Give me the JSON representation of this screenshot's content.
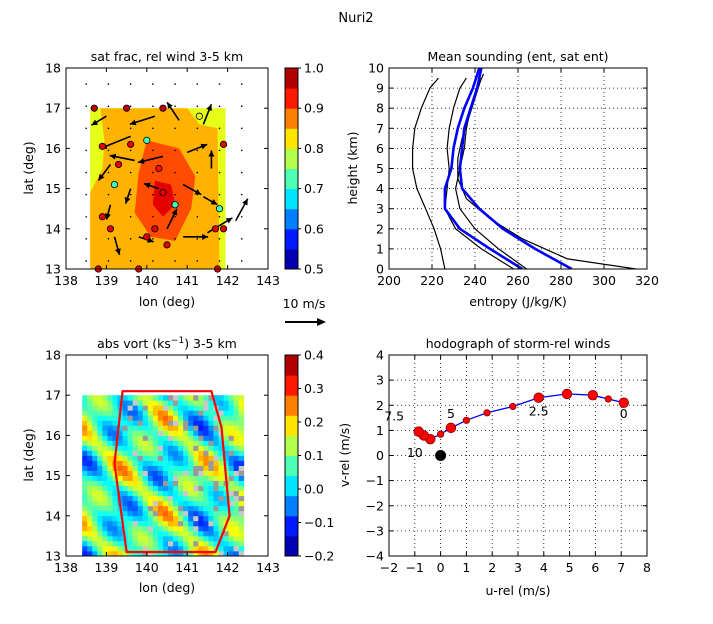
{
  "figure": {
    "title": "Nuri2"
  },
  "colormap_jet": [
    "#00007f",
    "#0000ff",
    "#007fff",
    "#00ffff",
    "#7fff7f",
    "#ffff00",
    "#ff7f00",
    "#ff0000",
    "#7f0000"
  ],
  "chart_data": [
    {
      "id": "sat-frac",
      "type": "heatmap",
      "title": "sat frac, rel wind 3-5 km",
      "xlabel": "lon (deg)",
      "ylabel": "lat (deg)",
      "xlim": [
        138,
        143
      ],
      "ylim": [
        13,
        18
      ],
      "xticks": [
        "138",
        "139",
        "140",
        "141",
        "142",
        "143"
      ],
      "yticks": [
        "13",
        "14",
        "15",
        "16",
        "17",
        "18"
      ],
      "colorbar": {
        "min": 0.5,
        "max": 1.0,
        "ticks": [
          "0.5",
          "0.6",
          "0.7",
          "0.8",
          "0.9",
          "1.0"
        ]
      },
      "wind_scale_label": "10 m/s",
      "field_levels": [
        {
          "level": 0.8,
          "polygon": [
            [
              138.6,
              17.0
            ],
            [
              141.95,
              17.0
            ],
            [
              141.95,
              13.0
            ],
            [
              138.6,
              13.0
            ]
          ]
        },
        {
          "level": 0.85,
          "polygon": [
            [
              138.85,
              17.0
            ],
            [
              141.0,
              17.0
            ],
            [
              141.3,
              16.6
            ],
            [
              141.75,
              16.5
            ],
            [
              141.8,
              13.0
            ],
            [
              138.6,
              13.0
            ],
            [
              138.6,
              14.9
            ],
            [
              138.9,
              15.5
            ],
            [
              138.95,
              16.2
            ]
          ]
        },
        {
          "level": 0.9,
          "polygon": [
            [
              140.0,
              16.2
            ],
            [
              140.8,
              16.0
            ],
            [
              141.2,
              15.3
            ],
            [
              141.1,
              14.5
            ],
            [
              140.7,
              13.7
            ],
            [
              140.1,
              13.8
            ],
            [
              139.7,
              14.4
            ],
            [
              139.8,
              15.4
            ]
          ]
        },
        {
          "level": 0.95,
          "polygon": [
            [
              140.2,
              15.2
            ],
            [
              140.6,
              15.1
            ],
            [
              140.7,
              14.6
            ],
            [
              140.4,
              14.3
            ],
            [
              140.15,
              14.6
            ]
          ]
        }
      ],
      "stations": [
        {
          "lon": 138.7,
          "lat": 17.0,
          "v": 0.97
        },
        {
          "lon": 139.5,
          "lat": 17.0,
          "v": 0.97
        },
        {
          "lon": 140.4,
          "lat": 17.0,
          "v": 0.97
        },
        {
          "lon": 138.9,
          "lat": 16.05,
          "v": 0.95
        },
        {
          "lon": 139.3,
          "lat": 15.6,
          "v": 0.95
        },
        {
          "lon": 139.6,
          "lat": 16.1,
          "v": 0.95
        },
        {
          "lon": 140.3,
          "lat": 15.5,
          "v": 0.93
        },
        {
          "lon": 140.0,
          "lat": 16.2,
          "v": 0.72
        },
        {
          "lon": 141.3,
          "lat": 16.8,
          "v": 0.8
        },
        {
          "lon": 139.2,
          "lat": 15.1,
          "v": 0.72
        },
        {
          "lon": 140.4,
          "lat": 14.9,
          "v": 0.95
        },
        {
          "lon": 140.7,
          "lat": 14.6,
          "v": 0.72
        },
        {
          "lon": 138.9,
          "lat": 14.3,
          "v": 0.95
        },
        {
          "lon": 139.1,
          "lat": 14.0,
          "v": 0.95
        },
        {
          "lon": 140.0,
          "lat": 13.8,
          "v": 0.95
        },
        {
          "lon": 140.2,
          "lat": 14.0,
          "v": 0.95
        },
        {
          "lon": 140.5,
          "lat": 13.6,
          "v": 0.95
        },
        {
          "lon": 141.7,
          "lat": 14.0,
          "v": 0.95
        },
        {
          "lon": 141.9,
          "lat": 14.0,
          "v": 0.95
        },
        {
          "lon": 141.8,
          "lat": 14.5,
          "v": 0.72
        },
        {
          "lon": 141.9,
          "lat": 16.1,
          "v": 0.95
        },
        {
          "lon": 138.8,
          "lat": 13.0,
          "v": 0.95
        },
        {
          "lon": 139.8,
          "lat": 13.0,
          "v": 0.95
        },
        {
          "lon": 141.75,
          "lat": 13.0,
          "v": 0.95
        }
      ],
      "wind_vectors": [
        {
          "lon": 139.0,
          "lat": 16.8,
          "u": -1.5,
          "v": -0.9
        },
        {
          "lon": 139.6,
          "lat": 16.3,
          "u": -3.0,
          "v": -1.2
        },
        {
          "lon": 140.2,
          "lat": 16.8,
          "u": -2.5,
          "v": -0.8
        },
        {
          "lon": 140.8,
          "lat": 16.7,
          "u": -1.2,
          "v": 1.8
        },
        {
          "lon": 141.4,
          "lat": 16.6,
          "u": 0.8,
          "v": 2.0
        },
        {
          "lon": 139.1,
          "lat": 15.6,
          "u": -1.2,
          "v": -1.6
        },
        {
          "lon": 139.7,
          "lat": 15.7,
          "u": -2.5,
          "v": 0.5
        },
        {
          "lon": 140.4,
          "lat": 15.8,
          "u": -2.5,
          "v": -0.6
        },
        {
          "lon": 141.0,
          "lat": 15.9,
          "u": 2.0,
          "v": 0.8
        },
        {
          "lon": 141.6,
          "lat": 15.5,
          "u": 0.0,
          "v": 1.8
        },
        {
          "lon": 139.1,
          "lat": 14.6,
          "u": -0.4,
          "v": -1.5
        },
        {
          "lon": 139.6,
          "lat": 15.0,
          "u": -0.5,
          "v": -1.5
        },
        {
          "lon": 140.3,
          "lat": 15.0,
          "u": -1.5,
          "v": 0.5
        },
        {
          "lon": 140.9,
          "lat": 15.1,
          "u": 1.8,
          "v": -1.0
        },
        {
          "lon": 141.4,
          "lat": 14.8,
          "u": 1.4,
          "v": -0.8
        },
        {
          "lon": 139.2,
          "lat": 13.8,
          "u": 0.5,
          "v": -1.8
        },
        {
          "lon": 139.8,
          "lat": 13.8,
          "u": 1.5,
          "v": -0.5
        },
        {
          "lon": 140.5,
          "lat": 14.0,
          "u": 1.0,
          "v": 2.0
        },
        {
          "lon": 140.9,
          "lat": 13.8,
          "u": 2.5,
          "v": 0.0
        },
        {
          "lon": 141.5,
          "lat": 13.9,
          "u": 2.5,
          "v": 1.5
        },
        {
          "lon": 142.2,
          "lat": 14.2,
          "u": 1.2,
          "v": 2.2
        }
      ]
    },
    {
      "id": "mean-sounding",
      "type": "line",
      "title": "Mean sounding (ent, sat ent)",
      "xlabel": "entropy (J/kg/K)",
      "ylabel": "height (km)",
      "xlim": [
        200,
        320
      ],
      "ylim": [
        0,
        10
      ],
      "xticks": [
        200,
        220,
        240,
        260,
        280,
        300,
        320
      ],
      "yticks": [
        0,
        1,
        2,
        3,
        4,
        5,
        6,
        7,
        8,
        9,
        10
      ],
      "grid": true,
      "series": [
        {
          "color": "#000000",
          "width": 1.2,
          "x": [
            226,
            224,
            221,
            217,
            213,
            211,
            211,
            212,
            215,
            219,
            223
          ],
          "y": [
            0,
            1,
            2,
            3,
            4,
            5,
            6,
            7,
            8,
            9,
            9.5
          ]
        },
        {
          "color": "#000000",
          "width": 1.2,
          "x": [
            258,
            243,
            231,
            226,
            227,
            228,
            227,
            228,
            230,
            233,
            236
          ],
          "y": [
            0,
            1,
            2,
            3,
            4,
            5,
            6,
            7,
            8,
            9,
            9.5
          ]
        },
        {
          "color": "#000000",
          "width": 1.2,
          "x": [
            264,
            251,
            240,
            233,
            231,
            233,
            235,
            236,
            238,
            241,
            244
          ],
          "y": [
            0,
            1,
            2,
            3,
            4,
            5,
            6,
            7,
            8,
            9,
            9.7
          ]
        },
        {
          "color": "#000000",
          "width": 1.2,
          "x": [
            315,
            283,
            262,
            247,
            236,
            232,
            232,
            234,
            237,
            240,
            243
          ],
          "y": [
            0,
            0.5,
            1.5,
            2.5,
            3.5,
            4.5,
            5.5,
            6.5,
            7.5,
            8.5,
            9.5
          ]
        },
        {
          "color": "#0000ff",
          "width": 2.6,
          "x": [
            262,
            247,
            233,
            226,
            226,
            229,
            230,
            232,
            235,
            239,
            242
          ],
          "y": [
            0,
            1,
            2,
            3,
            4,
            5,
            6,
            7,
            8,
            9,
            10
          ]
        },
        {
          "color": "#0000ff",
          "width": 2.6,
          "x": [
            285,
            268,
            253,
            242,
            234,
            233,
            234,
            235,
            238,
            241,
            243
          ],
          "y": [
            0,
            1,
            2,
            3,
            4,
            5,
            6,
            7,
            8,
            9,
            10
          ]
        }
      ]
    },
    {
      "id": "abs-vort",
      "type": "heatmap",
      "title": "abs vort (ks$^{-1}$) 3-5 km",
      "title_main": "abs vort (ks",
      "title_sup": "−1",
      "title_tail": ") 3-5 km",
      "xlabel": "lon (deg)",
      "ylabel": "lat (deg)",
      "xlim": [
        138,
        143
      ],
      "ylim": [
        13,
        18
      ],
      "xticks": [
        "138",
        "139",
        "140",
        "141",
        "142",
        "143"
      ],
      "yticks": [
        "13",
        "14",
        "15",
        "16",
        "17",
        "18"
      ],
      "colorbar": {
        "min": -0.2,
        "max": 0.4,
        "ticks": [
          "−0.2",
          "−0.1",
          "0.0",
          "0.1",
          "0.2",
          "0.3",
          "0.4"
        ]
      },
      "domain_polygon": [
        [
          139.4,
          17.1
        ],
        [
          141.6,
          17.1
        ],
        [
          141.85,
          16.2
        ],
        [
          142.05,
          14.0
        ],
        [
          141.7,
          13.1
        ],
        [
          139.5,
          13.1
        ],
        [
          139.2,
          15.3
        ]
      ]
    },
    {
      "id": "hodograph",
      "type": "scatter",
      "title": "hodograph of storm-rel winds",
      "xlabel": "u-rel (m/s)",
      "ylabel": "v-rel (m/s)",
      "xlim": [
        -2,
        8
      ],
      "ylim": [
        -4,
        4
      ],
      "xticks": [
        "−2",
        "−1",
        "0",
        "1",
        "2",
        "3",
        "4",
        "5",
        "6",
        "7",
        "8"
      ],
      "yticks": [
        "−4",
        "−3",
        "−2",
        "−1",
        "0",
        "1",
        "2",
        "3",
        "4"
      ],
      "grid": true,
      "points": [
        {
          "u": 7.1,
          "v": 2.1,
          "big": true
        },
        {
          "u": 6.5,
          "v": 2.25,
          "big": false
        },
        {
          "u": 5.9,
          "v": 2.4,
          "big": true
        },
        {
          "u": 4.9,
          "v": 2.45,
          "big": true
        },
        {
          "u": 3.8,
          "v": 2.3,
          "big": true
        },
        {
          "u": 2.8,
          "v": 1.95,
          "big": false
        },
        {
          "u": 1.8,
          "v": 1.7,
          "big": false
        },
        {
          "u": 1.0,
          "v": 1.4,
          "big": false
        },
        {
          "u": 0.4,
          "v": 1.1,
          "big": true
        },
        {
          "u": 0.0,
          "v": 0.85,
          "big": false
        },
        {
          "u": -0.4,
          "v": 0.65,
          "big": true
        },
        {
          "u": -0.65,
          "v": 0.8,
          "big": true
        },
        {
          "u": -0.85,
          "v": 0.95,
          "big": true
        }
      ],
      "origin": {
        "u": 0,
        "v": 0
      },
      "height_labels": [
        {
          "text": "0",
          "u": 7.1,
          "v": 1.5
        },
        {
          "text": "2.5",
          "u": 3.8,
          "v": 1.6
        },
        {
          "text": "5",
          "u": 0.4,
          "v": 1.5
        },
        {
          "text": "7.5",
          "u": -1.8,
          "v": 1.4
        },
        {
          "text": "10",
          "u": -1.0,
          "v": -0.05
        }
      ]
    }
  ]
}
